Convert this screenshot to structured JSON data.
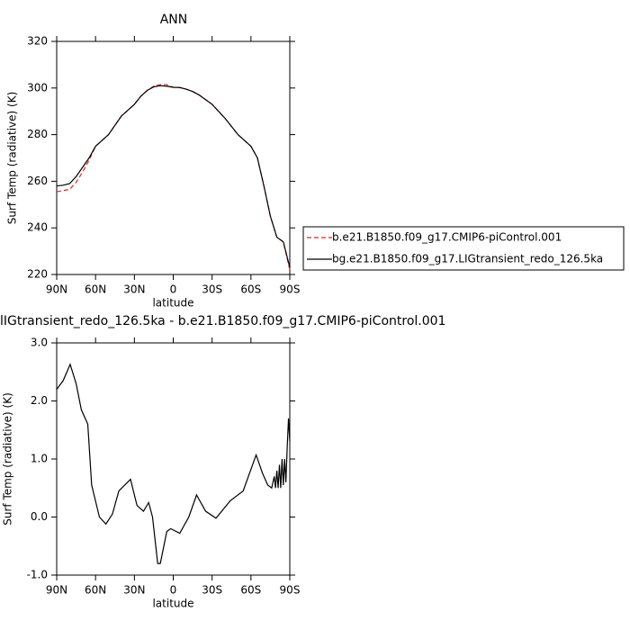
{
  "chart_data": [
    {
      "type": "line",
      "title": "ANN",
      "x_label": "latitude",
      "y_label": "Surf Temp (radiative) (K)",
      "x": [
        90,
        85,
        80,
        75,
        70,
        65,
        60,
        55,
        50,
        45,
        40,
        35,
        30,
        25,
        20,
        15,
        10,
        5,
        0,
        -5,
        -10,
        -15,
        -20,
        -25,
        -30,
        -35,
        -40,
        -45,
        -50,
        -55,
        -60,
        -65,
        -70,
        -75,
        -80,
        -85,
        -90
      ],
      "series": [
        {
          "name": "b.e21.B1850.f09_g17.CMIP6-piControl.001",
          "color": "#e8241c",
          "dashed": true,
          "values": [
            255.5,
            256,
            256.5,
            259.5,
            264,
            269,
            275,
            277.5,
            280,
            284,
            288,
            290.5,
            293,
            296.5,
            299,
            300.8,
            301.5,
            301.5,
            300.3,
            300.2,
            299.5,
            298.5,
            297,
            295,
            293,
            290,
            287,
            283.5,
            280,
            277.5,
            275,
            270,
            258,
            245,
            236,
            234,
            222
          ]
        },
        {
          "name": "bg.e21.B1850.f09_g17.LIGtransient_redo_126.5ka",
          "color": "#000000",
          "dashed": false,
          "values": [
            258,
            258.3,
            259,
            262,
            266,
            270,
            275,
            277.5,
            280,
            284,
            288,
            290.5,
            293,
            296.5,
            299,
            300.5,
            301,
            300.8,
            300.3,
            300.2,
            299.5,
            298.5,
            297,
            295,
            293,
            290,
            287,
            283.5,
            280,
            277.5,
            275,
            270,
            258,
            245,
            236,
            234,
            223
          ]
        }
      ],
      "xlim": [
        90,
        -90
      ],
      "xticks": [
        {
          "value": 90,
          "label": "90N"
        },
        {
          "value": 60,
          "label": "60N"
        },
        {
          "value": 30,
          "label": "30N"
        },
        0,
        {
          "value": -30,
          "label": "30S"
        },
        {
          "value": -60,
          "label": "60S"
        },
        {
          "value": -90,
          "label": "90S"
        }
      ],
      "ylim": [
        220,
        320
      ],
      "yticks": [
        220,
        240,
        260,
        280,
        300,
        320
      ],
      "legend": "right"
    },
    {
      "type": "line",
      "title": "lIGtransient_redo_126.5ka - b.e21.B1850.f09_g17.CMIP6-piControl.001",
      "x_label": "latitude",
      "y_label": "Surf Temp (radiative) (K)",
      "x": [
        90,
        85,
        79.6,
        75,
        71,
        66,
        63,
        57,
        52,
        47,
        42,
        33,
        28,
        23,
        19,
        16,
        12,
        10,
        5,
        2,
        -5,
        -12,
        -18,
        -25,
        -33,
        -44,
        -54,
        -64,
        -69,
        -73,
        -76,
        -78,
        -79,
        -80,
        -81,
        -82,
        -83,
        -84,
        -85,
        -86,
        -87,
        -88,
        -89,
        -90
      ],
      "values": [
        2.2,
        2.35,
        2.63,
        2.3,
        1.85,
        1.6,
        0.55,
        0,
        -0.12,
        0.05,
        0.45,
        0.65,
        0.2,
        0.1,
        0.25,
        0,
        -0.8,
        -0.8,
        -0.25,
        -0.2,
        -0.28,
        0,
        0.38,
        0.1,
        -0.02,
        0.28,
        0.45,
        1.07,
        0.75,
        0.55,
        0.5,
        0.7,
        0.5,
        0.8,
        0.5,
        0.9,
        0.5,
        1.0,
        0.55,
        1.0,
        0.6,
        1.2,
        1.7,
        1.3
      ],
      "color": "#000000",
      "xlim": [
        90,
        -90
      ],
      "xticks": [
        {
          "value": 90,
          "label": "90N"
        },
        {
          "value": 60,
          "label": "60N"
        },
        {
          "value": 30,
          "label": "30N"
        },
        0,
        {
          "value": -30,
          "label": "30S"
        },
        {
          "value": -60,
          "label": "60S"
        },
        {
          "value": -90,
          "label": "90S"
        }
      ],
      "ylim": [
        -1.0,
        3.0
      ],
      "yticks": [
        {
          "value": -1.0,
          "label": "-1.0"
        },
        {
          "value": 0,
          "label": "0.0"
        },
        {
          "value": 1.0,
          "label": "1.0"
        },
        {
          "value": 2.0,
          "label": "2.0"
        },
        {
          "value": 3.0,
          "label": "3.0"
        }
      ]
    }
  ]
}
